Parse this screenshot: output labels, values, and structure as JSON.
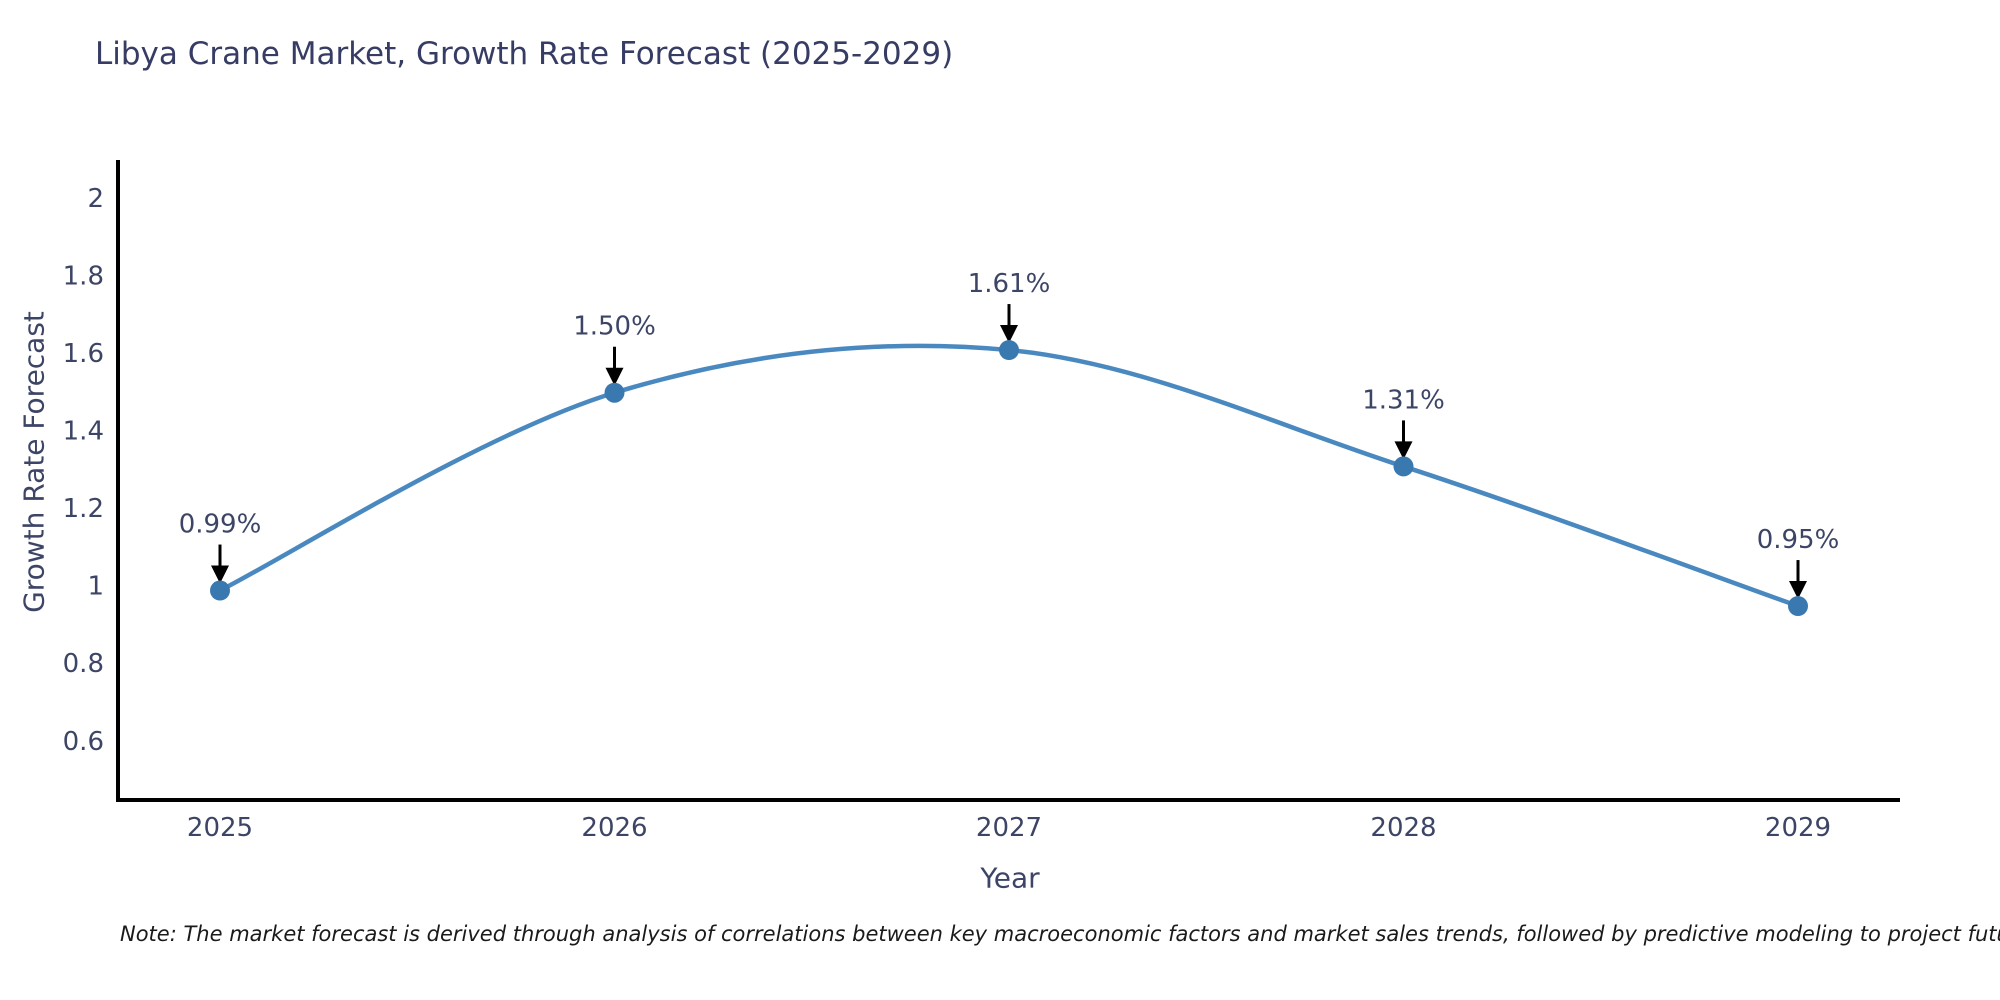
{
  "chart_data": {
    "type": "line",
    "title": "Libya Crane Market, Growth Rate Forecast (2025-2029)",
    "xlabel": "Year",
    "ylabel": "Growth Rate Forecast",
    "categories": [
      "2025",
      "2026",
      "2027",
      "2028",
      "2029"
    ],
    "values": [
      0.99,
      1.5,
      1.61,
      1.31,
      0.95
    ],
    "point_labels": [
      "0.99%",
      "1.50%",
      "1.61%",
      "1.31%",
      "0.95%"
    ],
    "ylim": [
      0.45,
      2.1
    ],
    "y_ticks": [
      0.6,
      0.8,
      1,
      1.2,
      1.4,
      1.6,
      1.8,
      2
    ],
    "grid": false,
    "legend": "none",
    "line_shape": "spline",
    "annotation_style": "black-down-arrow",
    "colors": {
      "line": "#4a89c0",
      "marker": "#3a78b0",
      "arrow": "#000000",
      "axis": "#000000",
      "tick_text": "#3d4566",
      "annotation_text": "#3d4566",
      "title_text": "#363c63",
      "background": "#ffffff"
    },
    "note": "Note: The market forecast is derived through analysis of correlations between key macroeconomic factors and market sales trends, followed by predictive modeling to project future sales"
  }
}
